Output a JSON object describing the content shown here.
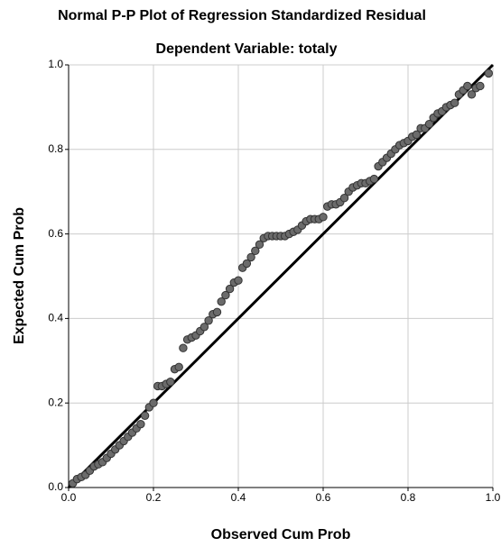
{
  "chart_data": {
    "type": "scatter",
    "title": "Normal P-P Plot of Regression Standardized Residual",
    "subtitle": "Dependent Variable: totaly",
    "x_label": "Observed Cum Prob",
    "y_label": "Expected Cum Prob",
    "xlim": [
      0,
      1
    ],
    "ylim": [
      0,
      1
    ],
    "xticks": [
      {
        "value": 0,
        "label": "0.0"
      },
      0.2,
      0.4,
      0.6,
      0.8,
      {
        "value": 1,
        "label": "1.0"
      }
    ],
    "yticks": [
      {
        "value": 0,
        "label": "0.0"
      },
      0.2,
      0.4,
      0.6,
      0.8,
      {
        "value": 1,
        "label": "1.0"
      }
    ],
    "grid": true,
    "color": "#6b6b6b",
    "line_color": "#000000",
    "x": [
      0.01,
      0.02,
      0.03,
      0.04,
      0.05,
      0.06,
      0.07,
      0.08,
      0.09,
      0.1,
      0.11,
      0.12,
      0.13,
      0.14,
      0.15,
      0.16,
      0.17,
      0.18,
      0.19,
      0.2,
      0.21,
      0.22,
      0.23,
      0.24,
      0.25,
      0.26,
      0.27,
      0.28,
      0.29,
      0.3,
      0.31,
      0.32,
      0.33,
      0.34,
      0.35,
      0.36,
      0.37,
      0.38,
      0.39,
      0.4,
      0.41,
      0.42,
      0.43,
      0.44,
      0.45,
      0.46,
      0.47,
      0.48,
      0.49,
      0.5,
      0.51,
      0.52,
      0.53,
      0.54,
      0.55,
      0.56,
      0.57,
      0.58,
      0.59,
      0.6,
      0.61,
      0.62,
      0.63,
      0.64,
      0.65,
      0.66,
      0.67,
      0.68,
      0.69,
      0.7,
      0.71,
      0.72,
      0.73,
      0.74,
      0.75,
      0.76,
      0.77,
      0.78,
      0.79,
      0.8,
      0.81,
      0.82,
      0.83,
      0.84,
      0.85,
      0.86,
      0.87,
      0.88,
      0.89,
      0.9,
      0.91,
      0.92,
      0.93,
      0.94,
      0.95,
      0.96,
      0.97,
      0.99
    ],
    "values": [
      0.01,
      0.02,
      0.025,
      0.03,
      0.04,
      0.05,
      0.055,
      0.06,
      0.07,
      0.08,
      0.09,
      0.1,
      0.11,
      0.12,
      0.13,
      0.14,
      0.15,
      0.17,
      0.19,
      0.2,
      0.24,
      0.24,
      0.245,
      0.25,
      0.28,
      0.285,
      0.33,
      0.35,
      0.355,
      0.36,
      0.37,
      0.38,
      0.395,
      0.41,
      0.415,
      0.44,
      0.455,
      0.47,
      0.485,
      0.49,
      0.52,
      0.53,
      0.545,
      0.56,
      0.575,
      0.59,
      0.595,
      0.595,
      0.595,
      0.595,
      0.595,
      0.6,
      0.605,
      0.61,
      0.62,
      0.63,
      0.635,
      0.635,
      0.635,
      0.64,
      0.665,
      0.67,
      0.67,
      0.675,
      0.685,
      0.7,
      0.71,
      0.715,
      0.72,
      0.72,
      0.725,
      0.73,
      0.76,
      0.77,
      0.78,
      0.79,
      0.8,
      0.81,
      0.815,
      0.82,
      0.83,
      0.835,
      0.85,
      0.85,
      0.86,
      0.875,
      0.885,
      0.89,
      0.9,
      0.905,
      0.91,
      0.93,
      0.94,
      0.95,
      0.93,
      0.945,
      0.95,
      0.98
    ],
    "reference_line": {
      "x": [
        0,
        1
      ],
      "values": [
        0,
        1
      ]
    }
  }
}
